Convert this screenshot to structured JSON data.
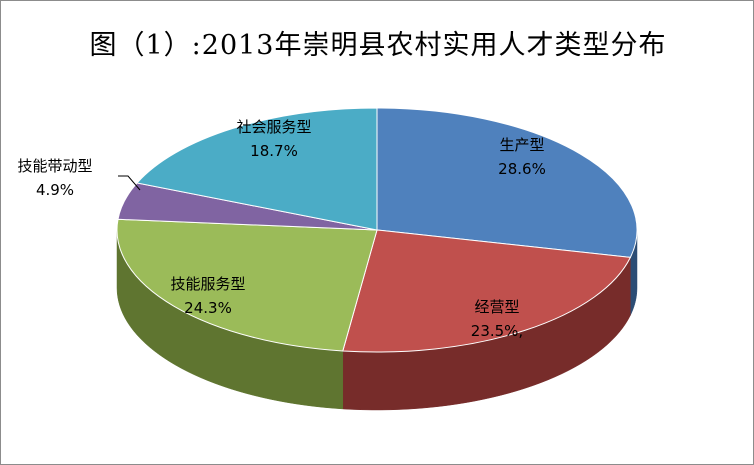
{
  "chart_data": {
    "type": "pie",
    "title": "图（1）:2013年崇明县农村实用人才类型分布",
    "slices": [
      {
        "label": "生产型",
        "value_text": "28.6%",
        "value": 28.6,
        "color": "#4F81BD",
        "side_color": "#2C4D75"
      },
      {
        "label": "经营型",
        "value_text": "23.5%,",
        "value": 23.5,
        "color": "#C0504D",
        "side_color": "#772C2A"
      },
      {
        "label": "技能服务型",
        "value_text": "24.3%",
        "value": 24.3,
        "color": "#9BBB59",
        "side_color": "#5F7530"
      },
      {
        "label": "技能带动型",
        "value_text": "4.9%",
        "value": 4.9,
        "color": "#8064A2",
        "side_color": "#4D3B62"
      },
      {
        "label": "社会服务型",
        "value_text": "18.7%",
        "value": 18.7,
        "color": "#4BACC6",
        "side_color": "#276A7C"
      }
    ]
  }
}
